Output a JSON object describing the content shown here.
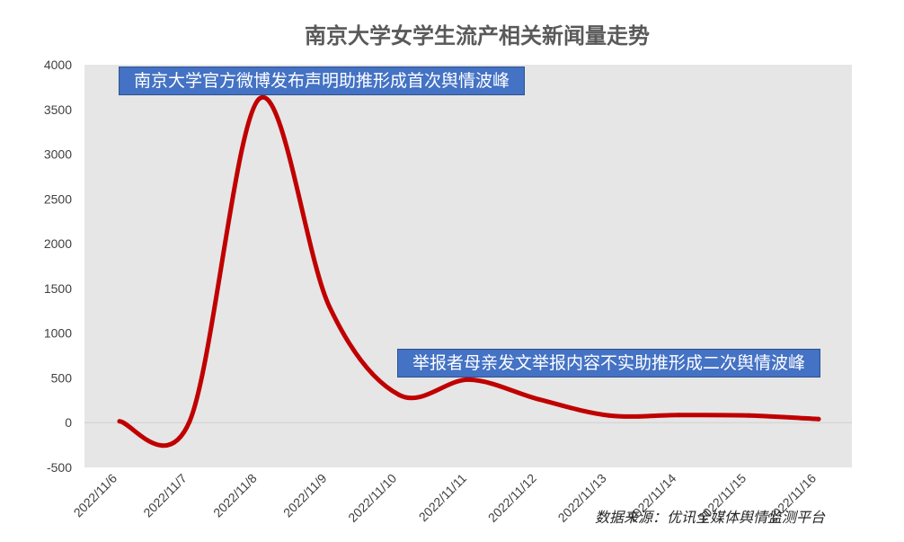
{
  "chart_data": {
    "type": "line",
    "title": "南京大学女学生流产相关新闻量走势",
    "xlabel": "",
    "ylabel": "",
    "categories": [
      "2022/11/6",
      "2022/11/7",
      "2022/11/8",
      "2022/11/9",
      "2022/11/10",
      "2022/11/11",
      "2022/11/12",
      "2022/11/13",
      "2022/11/14",
      "2022/11/15",
      "2022/11/16"
    ],
    "series": [
      {
        "values": [
          15,
          10,
          3620,
          1300,
          310,
          480,
          260,
          80,
          85,
          80,
          40
        ]
      }
    ],
    "ylim": [
      -500,
      4000
    ],
    "yticks": [
      -500,
      0,
      500,
      1000,
      1500,
      2000,
      2500,
      3000,
      3500,
      4000
    ],
    "grid": false,
    "legend": "none",
    "colors": {
      "line": "#C00000",
      "plot_bg": "#E6E6E6",
      "annotation_bg": "#4472C4"
    },
    "annotations": [
      "南京大学官方微博发布声明助推形成首次舆情波峰",
      "举报者母亲发文举报内容不实助推形成二次舆情波峰"
    ],
    "source": "数据来源：优讯全媒体舆情监测平台"
  }
}
